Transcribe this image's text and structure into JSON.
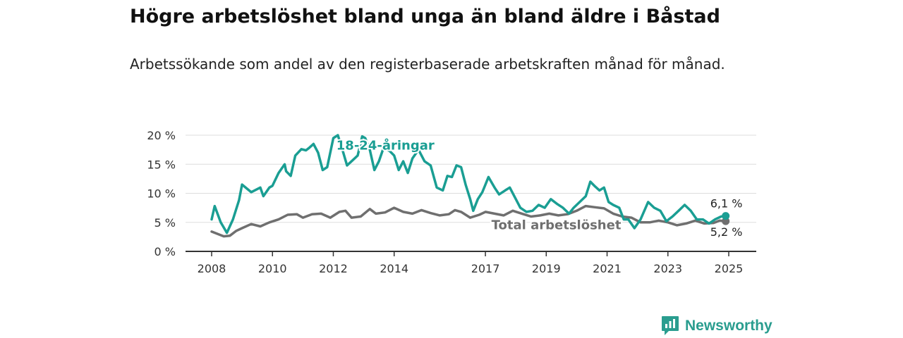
{
  "title": "Högre arbetslöshet bland unga än bland äldre i Båstad",
  "subtitle": "Arbetssökande som andel av den registerbaserade arbetskraften månad för månad.",
  "brand": {
    "name": "Newsworthy",
    "logo_icon": "bar-chart-speech-icon"
  },
  "colors": {
    "youth": "#1a9e93",
    "total": "#6f6f6f",
    "grid": "#dddddd",
    "axis": "#333333"
  },
  "chart_data": {
    "type": "line",
    "x_unit": "year",
    "xlim": [
      2007.55,
      2026.0
    ],
    "ylim": [
      0,
      20
    ],
    "grid": "horizontal",
    "y_ticks": [
      0,
      5,
      10,
      15,
      20
    ],
    "y_tick_labels": [
      "0 %",
      "5 %",
      "10 %",
      "15 %",
      "20 %"
    ],
    "x_ticks": [
      2008,
      2010,
      2012,
      2014,
      2017,
      2019,
      2021,
      2023,
      2025
    ],
    "x_tick_labels": [
      "2008",
      "2010",
      "2012",
      "2014",
      "2017",
      "2019",
      "2021",
      "2023",
      "2025"
    ],
    "series": [
      {
        "name": "18-24-åringar",
        "key": "youth",
        "end_label": "6,1 %",
        "points": [
          [
            2008.0,
            5.5
          ],
          [
            2008.1,
            7.8
          ],
          [
            2008.3,
            5.0
          ],
          [
            2008.5,
            3.2
          ],
          [
            2008.7,
            5.5
          ],
          [
            2008.9,
            8.8
          ],
          [
            2009.0,
            11.5
          ],
          [
            2009.3,
            10.2
          ],
          [
            2009.6,
            11.0
          ],
          [
            2009.7,
            9.5
          ],
          [
            2009.9,
            11.0
          ],
          [
            2010.0,
            11.3
          ],
          [
            2010.2,
            13.5
          ],
          [
            2010.4,
            15.0
          ],
          [
            2010.45,
            13.8
          ],
          [
            2010.6,
            13.0
          ],
          [
            2010.75,
            16.5
          ],
          [
            2010.95,
            17.6
          ],
          [
            2011.1,
            17.4
          ],
          [
            2011.2,
            17.8
          ],
          [
            2011.35,
            18.5
          ],
          [
            2011.5,
            17.0
          ],
          [
            2011.65,
            14.0
          ],
          [
            2011.8,
            14.5
          ],
          [
            2012.0,
            19.5
          ],
          [
            2012.15,
            20.0
          ],
          [
            2012.3,
            17.5
          ],
          [
            2012.45,
            14.8
          ],
          [
            2012.6,
            15.5
          ],
          [
            2012.8,
            16.5
          ],
          [
            2012.95,
            19.8
          ],
          [
            2013.05,
            19.5
          ],
          [
            2013.2,
            17.5
          ],
          [
            2013.35,
            14.0
          ],
          [
            2013.5,
            15.5
          ],
          [
            2013.65,
            17.8
          ],
          [
            2013.85,
            17.3
          ],
          [
            2014.0,
            16.5
          ],
          [
            2014.15,
            14.0
          ],
          [
            2014.3,
            15.5
          ],
          [
            2014.45,
            13.5
          ],
          [
            2014.6,
            16.0
          ],
          [
            2014.8,
            17.5
          ],
          [
            2015.0,
            15.5
          ],
          [
            2015.2,
            14.8
          ],
          [
            2015.4,
            11.0
          ],
          [
            2015.6,
            10.5
          ],
          [
            2015.75,
            13.0
          ],
          [
            2015.9,
            12.8
          ],
          [
            2016.05,
            14.8
          ],
          [
            2016.2,
            14.5
          ],
          [
            2016.35,
            11.5
          ],
          [
            2016.5,
            9.0
          ],
          [
            2016.6,
            7.0
          ],
          [
            2016.75,
            9.0
          ],
          [
            2016.9,
            10.2
          ],
          [
            2017.0,
            11.5
          ],
          [
            2017.1,
            12.8
          ],
          [
            2017.3,
            11.0
          ],
          [
            2017.45,
            9.8
          ],
          [
            2017.65,
            10.5
          ],
          [
            2017.8,
            11.0
          ],
          [
            2017.95,
            9.5
          ],
          [
            2018.15,
            7.5
          ],
          [
            2018.35,
            6.8
          ],
          [
            2018.55,
            7.0
          ],
          [
            2018.75,
            8.0
          ],
          [
            2018.95,
            7.5
          ],
          [
            2019.15,
            9.0
          ],
          [
            2019.35,
            8.2
          ],
          [
            2019.55,
            7.5
          ],
          [
            2019.75,
            6.5
          ],
          [
            2019.9,
            7.5
          ],
          [
            2020.1,
            8.5
          ],
          [
            2020.3,
            9.5
          ],
          [
            2020.45,
            12.0
          ],
          [
            2020.6,
            11.2
          ],
          [
            2020.75,
            10.5
          ],
          [
            2020.9,
            11.0
          ],
          [
            2021.05,
            8.5
          ],
          [
            2021.2,
            8.0
          ],
          [
            2021.4,
            7.5
          ],
          [
            2021.55,
            5.5
          ],
          [
            2021.7,
            5.5
          ],
          [
            2021.9,
            4.0
          ],
          [
            2022.1,
            5.5
          ],
          [
            2022.35,
            8.5
          ],
          [
            2022.55,
            7.5
          ],
          [
            2022.75,
            7.0
          ],
          [
            2022.95,
            5.2
          ],
          [
            2023.15,
            6.0
          ],
          [
            2023.35,
            7.0
          ],
          [
            2023.55,
            8.0
          ],
          [
            2023.75,
            7.0
          ],
          [
            2023.95,
            5.5
          ],
          [
            2024.15,
            5.5
          ],
          [
            2024.35,
            4.8
          ],
          [
            2024.55,
            5.5
          ],
          [
            2024.75,
            6.0
          ],
          [
            2024.9,
            6.1
          ]
        ]
      },
      {
        "name": "Total arbetslöshet",
        "key": "total",
        "end_label": "5,2 %",
        "points": [
          [
            2008.0,
            3.4
          ],
          [
            2008.2,
            3.0
          ],
          [
            2008.4,
            2.6
          ],
          [
            2008.6,
            2.7
          ],
          [
            2008.8,
            3.5
          ],
          [
            2009.0,
            4.0
          ],
          [
            2009.3,
            4.7
          ],
          [
            2009.6,
            4.3
          ],
          [
            2009.9,
            5.0
          ],
          [
            2010.2,
            5.5
          ],
          [
            2010.5,
            6.3
          ],
          [
            2010.8,
            6.4
          ],
          [
            2011.0,
            5.8
          ],
          [
            2011.3,
            6.4
          ],
          [
            2011.6,
            6.5
          ],
          [
            2011.9,
            5.8
          ],
          [
            2012.2,
            6.8
          ],
          [
            2012.4,
            7.0
          ],
          [
            2012.6,
            5.8
          ],
          [
            2012.9,
            6.0
          ],
          [
            2013.2,
            7.3
          ],
          [
            2013.4,
            6.5
          ],
          [
            2013.7,
            6.7
          ],
          [
            2014.0,
            7.5
          ],
          [
            2014.3,
            6.8
          ],
          [
            2014.6,
            6.5
          ],
          [
            2014.9,
            7.1
          ],
          [
            2015.2,
            6.6
          ],
          [
            2015.5,
            6.2
          ],
          [
            2015.8,
            6.4
          ],
          [
            2016.0,
            7.1
          ],
          [
            2016.2,
            6.8
          ],
          [
            2016.5,
            5.8
          ],
          [
            2016.8,
            6.3
          ],
          [
            2017.0,
            6.8
          ],
          [
            2017.3,
            6.5
          ],
          [
            2017.6,
            6.2
          ],
          [
            2017.9,
            7.0
          ],
          [
            2018.2,
            6.5
          ],
          [
            2018.5,
            6.0
          ],
          [
            2018.8,
            6.2
          ],
          [
            2019.1,
            6.5
          ],
          [
            2019.4,
            6.2
          ],
          [
            2019.7,
            6.4
          ],
          [
            2020.0,
            7.0
          ],
          [
            2020.3,
            7.8
          ],
          [
            2020.6,
            7.6
          ],
          [
            2020.9,
            7.4
          ],
          [
            2021.2,
            6.5
          ],
          [
            2021.5,
            6.0
          ],
          [
            2021.8,
            5.8
          ],
          [
            2022.1,
            5.0
          ],
          [
            2022.4,
            5.0
          ],
          [
            2022.7,
            5.3
          ],
          [
            2023.0,
            5.0
          ],
          [
            2023.3,
            4.5
          ],
          [
            2023.6,
            4.8
          ],
          [
            2023.9,
            5.3
          ],
          [
            2024.2,
            4.8
          ],
          [
            2024.5,
            4.9
          ],
          [
            2024.7,
            5.3
          ],
          [
            2024.9,
            5.2
          ]
        ]
      }
    ]
  }
}
